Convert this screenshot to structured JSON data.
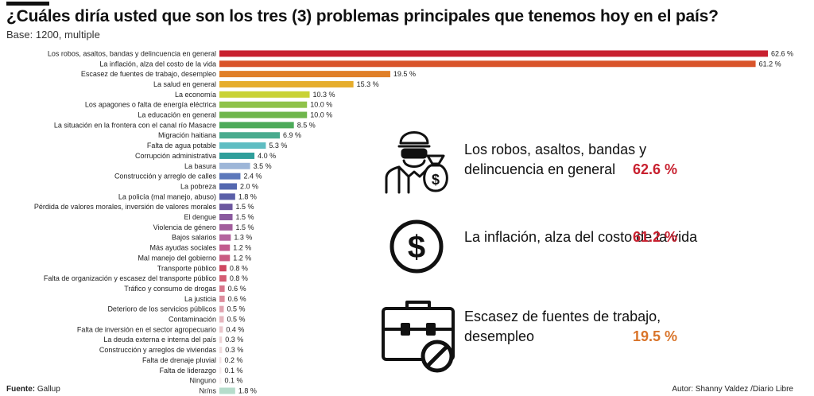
{
  "title": "¿Cuáles diría usted que son los tres (3) problemas principales que tenemos hoy en el país?",
  "subtitle": "Base: 1200, multiple",
  "chart_data": {
    "type": "bar",
    "orientation": "horizontal",
    "grid": false,
    "categories": [
      "Los robos, asaltos, bandas y delincuencia en general",
      "La inflación, alza del costo de la vida",
      "Escasez de fuentes de trabajo, desempleo",
      "La salud en general",
      "La economía",
      "Los apagones o falta de energía eléctrica",
      "La educación en general",
      "La situación en la frontera con el canal río Masacre",
      "Migración haitiana",
      "Falta de agua potable",
      "Corrupción administrativa",
      "La basura",
      "Construcción y arreglo de calles",
      "La pobreza",
      "La policía (mal manejo, abuso)",
      "Pérdida de valores morales, inversión de valores morales",
      "El dengue",
      "Violencia de género",
      "Bajos salarios",
      "Más ayudas sociales",
      "Mal manejo del gobierno",
      "Transporte público",
      "Falta de organización y escasez del transporte público",
      "Tráfico y consumo de drogas",
      "La justicia",
      "Deterioro de los servicios públicos",
      "Contaminación",
      "Falta de inversión en el sector agropecuario",
      "La deuda externa e interna del país",
      "Construcción y arreglos de viviendas",
      "Falta de drenaje pluvial",
      "Falta de liderazgo",
      "Ninguno",
      "Nr/ns"
    ],
    "values": [
      62.6,
      61.2,
      19.5,
      15.3,
      10.3,
      10.0,
      10.0,
      8.5,
      6.9,
      5.3,
      4.0,
      3.5,
      2.4,
      2.0,
      1.8,
      1.5,
      1.5,
      1.5,
      1.3,
      1.2,
      1.2,
      0.8,
      0.8,
      0.6,
      0.6,
      0.5,
      0.5,
      0.4,
      0.3,
      0.3,
      0.2,
      0.1,
      0.1,
      1.8
    ],
    "value_labels": [
      "62.6 %",
      "61.2 %",
      "19.5 %",
      "15.3 %",
      "10.3 %",
      "10.0 %",
      "10.0 %",
      "8.5 %",
      "6.9 %",
      "5.3 %",
      "4.0 %",
      "3.5 %",
      "2.4 %",
      "2.0 %",
      "1.8 %",
      "1.5 %",
      "1.5 %",
      "1.5 %",
      "1.3 %",
      "1.2 %",
      "1.2 %",
      "0.8 %",
      "0.8 %",
      "0.6 %",
      "0.6 %",
      "0.5 %",
      "0.5 %",
      "0.4 %",
      "0.3 %",
      "0.3 %",
      "0.2 %",
      "0.1 %",
      "0.1 %",
      "1.8 %"
    ],
    "colors": [
      "#c8202f",
      "#d9542a",
      "#e07f28",
      "#e6ad2c",
      "#c9d236",
      "#8fc24a",
      "#6fb64c",
      "#4daa5a",
      "#49ab8e",
      "#5fbdc2",
      "#2f9e9a",
      "#9db6d8",
      "#5c78bb",
      "#5468b0",
      "#5a5fa8",
      "#6c579f",
      "#8a5a9e",
      "#a25d9c",
      "#b4639e",
      "#c25b8e",
      "#c95a82",
      "#cf4660",
      "#d45c72",
      "#d8758a",
      "#dc8c9c",
      "#e0a3af",
      "#e5b6be",
      "#e9c6cb",
      "#edd3d6",
      "#f0dcde",
      "#f3e3e5",
      "#f5eaeb",
      "#f7f0f0",
      "#b6dccb"
    ],
    "xlim": [
      0,
      62.6
    ]
  },
  "highlights": [
    {
      "icon": "thief-with-money-bag-icon",
      "text": "Los robos, asaltos, bandas y delincuencia en general",
      "value": "62.6 %",
      "color": "#c8202f"
    },
    {
      "icon": "dollar-coin-icon",
      "text": "La inflación, alza del costo de la vida",
      "value": "61.2 %",
      "color": "#c8202f"
    },
    {
      "icon": "briefcase-no-icon",
      "text": "Escasez de fuentes de trabajo, desempleo",
      "value": "19.5 %",
      "color": "#d9742a"
    }
  ],
  "footer": {
    "source_label": "Fuente:",
    "source": "Gallup",
    "author": "Autor: Shanny Valdez /Diario Libre"
  }
}
